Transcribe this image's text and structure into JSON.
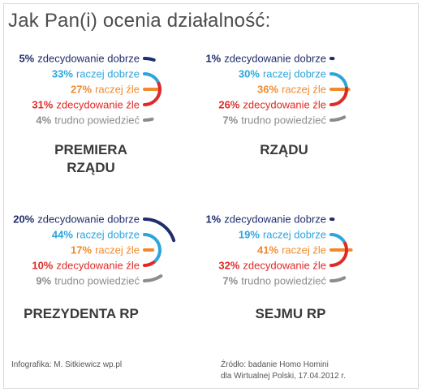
{
  "title": "Jak Pan(i) ocenia działalność:",
  "colors": {
    "zdecydowanie_dobrze": "#1f2d6a",
    "raczej_dobrze": "#2aa6dd",
    "raczej_zle": "#f18a2e",
    "zdecydowanie_zle": "#e02a27",
    "trudno_powiedziec": "#8c8c8c"
  },
  "chart_data": [
    {
      "type": "radial-bar",
      "title_lines": [
        "PREMIERA",
        "RZĄDU"
      ],
      "unit": "%",
      "categories": [
        "zdecydowanie dobrze",
        "raczej dobrze",
        "raczej źle",
        "zdecydowanie źle",
        "trudno powiedzieć"
      ],
      "values": [
        5,
        33,
        27,
        31,
        4
      ]
    },
    {
      "type": "radial-bar",
      "title_lines": [
        "RZĄDU"
      ],
      "unit": "%",
      "categories": [
        "zdecydowanie dobrze",
        "raczej dobrze",
        "raczej źle",
        "zdecydowanie źle",
        "trudno powiedzieć"
      ],
      "values": [
        1,
        30,
        36,
        26,
        7
      ]
    },
    {
      "type": "radial-bar",
      "title_lines": [
        "PREZYDENTA RP"
      ],
      "unit": "%",
      "categories": [
        "zdecydowanie dobrze",
        "raczej dobrze",
        "raczej źle",
        "zdecydowanie źle",
        "trudno powiedzieć"
      ],
      "values": [
        20,
        44,
        17,
        10,
        9
      ]
    },
    {
      "type": "radial-bar",
      "title_lines": [
        "SEJMU RP"
      ],
      "unit": "%",
      "categories": [
        "zdecydowanie dobrze",
        "raczej dobrze",
        "raczej źle",
        "zdecydowanie źle",
        "trudno powiedzieć"
      ],
      "values": [
        1,
        19,
        41,
        32,
        7
      ]
    }
  ],
  "footer": {
    "credit": "Infografika: M. Sitkiewicz wp.pl",
    "source_line1": "Źródło: badanie Homo Homini",
    "source_line2": "dla Wirtualnej Polski, 17.04.2012 r."
  }
}
